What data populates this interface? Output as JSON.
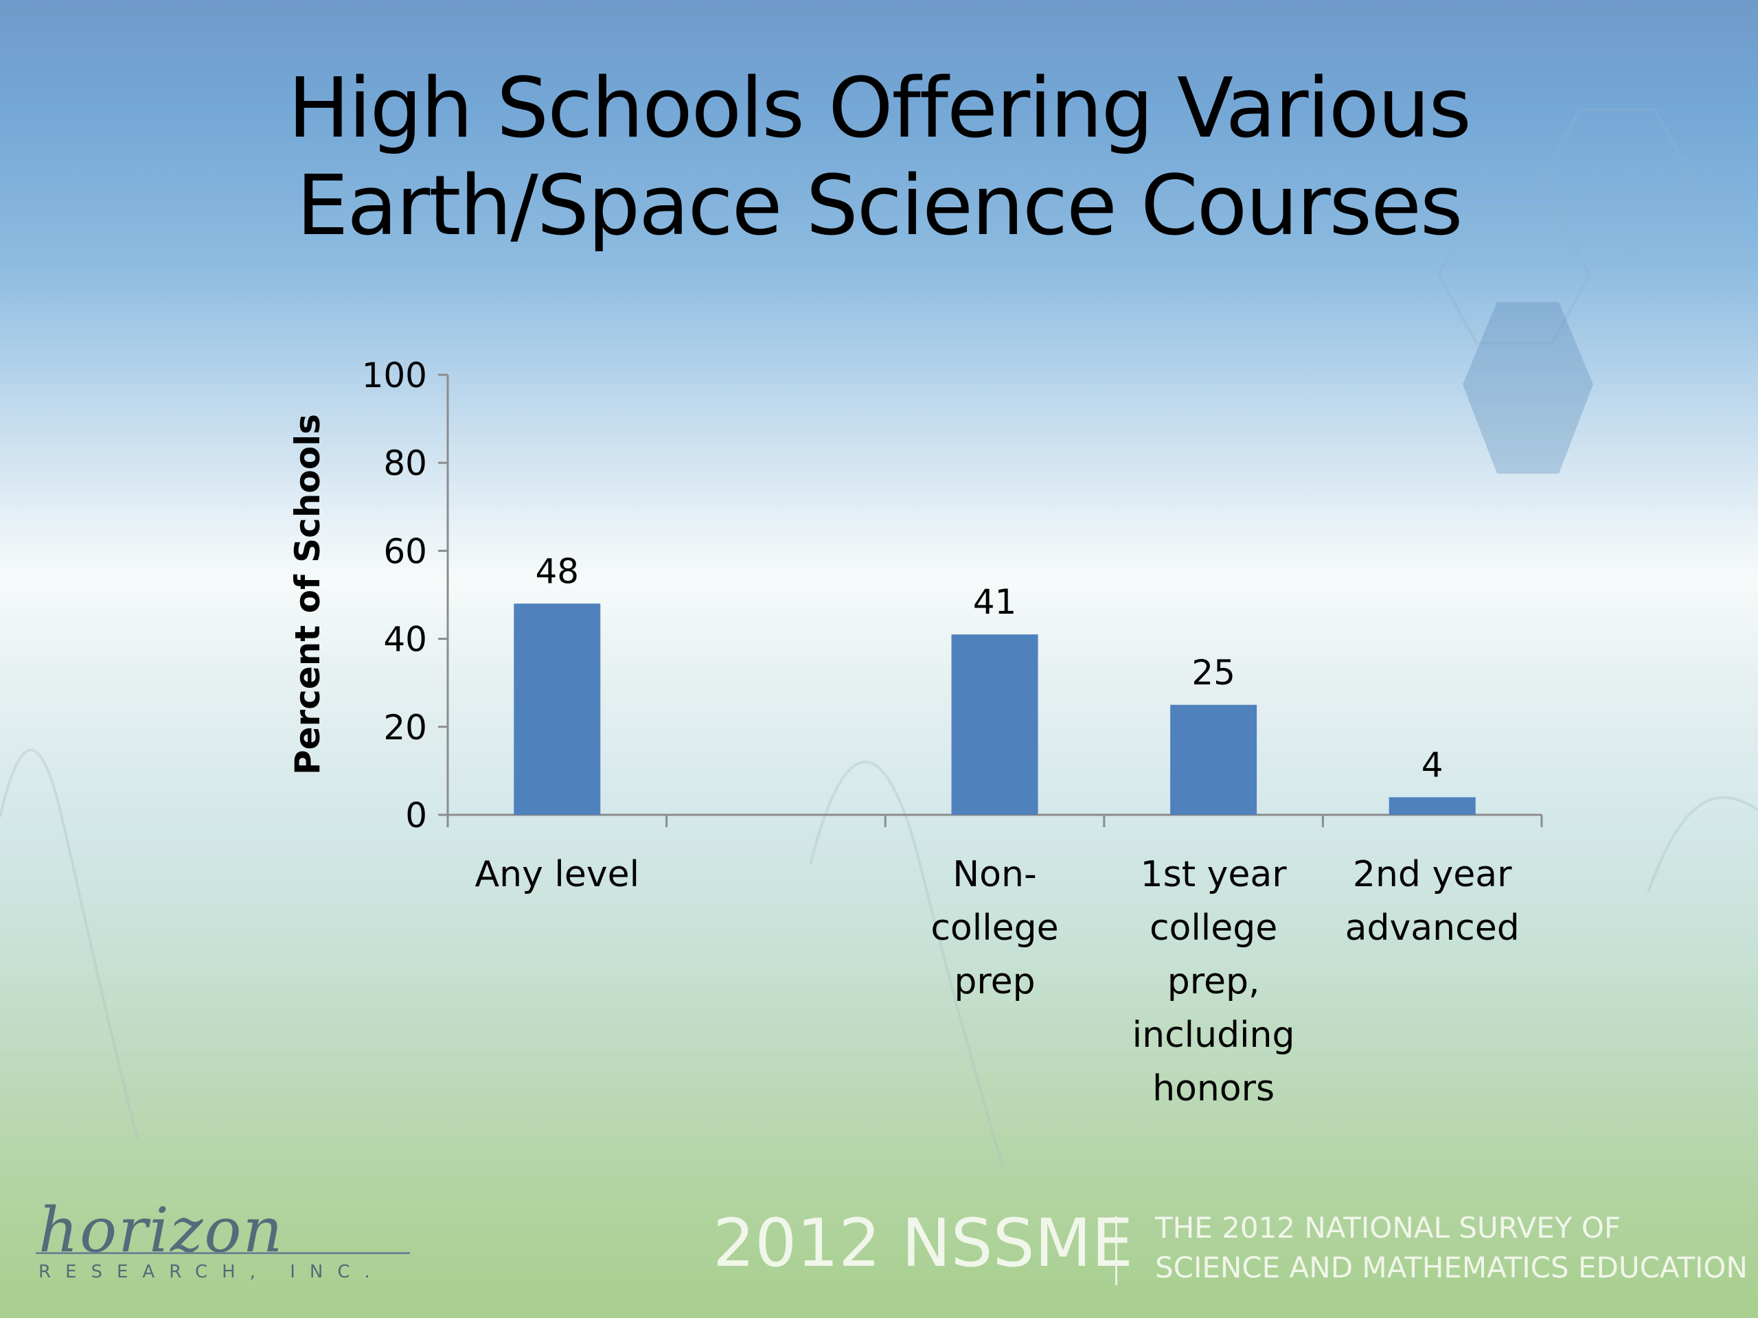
{
  "slide": {
    "title_lines": [
      "High Schools Offering Various",
      "Earth/Space Science Courses"
    ]
  },
  "chart_data": {
    "type": "bar",
    "title": "High Schools Offering Various Earth/Space Science Courses",
    "ylabel": "Percent of Schools",
    "xlabel": "",
    "ylim": [
      0,
      100
    ],
    "yticks": [
      "0",
      "20",
      "40",
      "60",
      "80",
      "100"
    ],
    "categories": [
      [
        "Any level"
      ],
      [
        ""
      ],
      [
        "Non-college",
        "prep"
      ],
      [
        "1st year",
        "college",
        "prep,",
        "including",
        "honors"
      ],
      [
        "2nd year",
        "advanced"
      ]
    ],
    "values": [
      48,
      null,
      41,
      25,
      4
    ],
    "value_labels": [
      "48",
      "",
      "41",
      "25",
      "4"
    ],
    "bar_color": "#4f81bd",
    "grid": false,
    "legend": "none"
  },
  "footer": {
    "brand": "2012 NSSME",
    "survey_lines": [
      "THE 2012 NATIONAL SURVEY OF",
      "SCIENCE AND MATHEMATICS EDUCATION"
    ],
    "logo_script": "horizon",
    "logo_sub": "RESEARCH, INC."
  }
}
